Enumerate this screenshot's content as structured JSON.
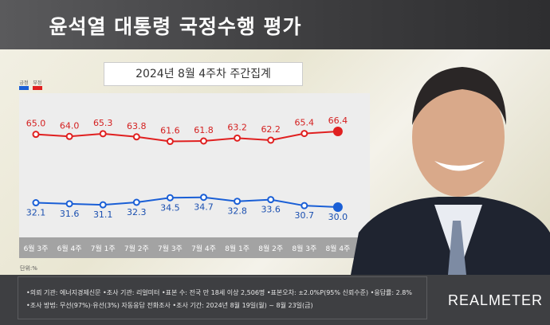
{
  "header": {
    "title": "윤석열 대통령 국정수행 평가",
    "subtitle": "2024년 8월 4주차 주간집계"
  },
  "chart_data": {
    "type": "line",
    "categories": [
      "6월 3주",
      "6월 4주",
      "7월 1주",
      "7월 2주",
      "7월 3주",
      "7월 4주",
      "8월 1주",
      "8월 2주",
      "8월 3주",
      "8월 4주"
    ],
    "series": [
      {
        "name": "긍정",
        "color": "#1a5fd6",
        "values": [
          32.1,
          31.6,
          31.1,
          32.3,
          34.5,
          34.7,
          32.8,
          33.6,
          30.7,
          30.0
        ]
      },
      {
        "name": "부정",
        "color": "#e02020",
        "values": [
          65.0,
          64.0,
          65.3,
          63.8,
          61.6,
          61.8,
          63.2,
          62.2,
          65.4,
          66.4
        ]
      }
    ],
    "unit_label": "단위:%",
    "legend_position": "top-left",
    "grid": false
  },
  "footer": {
    "line1": "•의뢰 기관: 에너지경제신문 •조사 기관: 리얼미터 •표본 수: 전국 만 18세 이상 2,506명 •표본오차: ±2.0%P(95% 신뢰수준) •응답률: 2.8%",
    "line2": "•조사 방법: 무선(97%)·유선(3%) 자동응답 전화조사 •조사 기간: 2024년 8월 19일(월) ~ 8월 23일(금)",
    "brand": "REALMETER"
  }
}
